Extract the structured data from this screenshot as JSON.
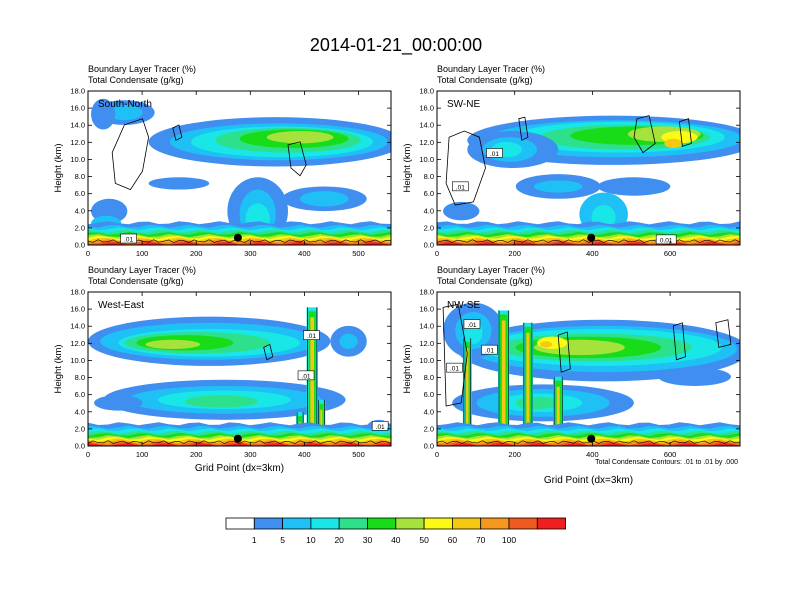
{
  "title": "2014-01-21_00:00:00",
  "colors": {
    "white": "#ffffff",
    "blue": "#3f8ef0",
    "sky": "#1ec0f5",
    "cyan": "#19e6e6",
    "teal": "#2de08c",
    "green": "#19dc19",
    "lime": "#a6e23c",
    "yellow": "#fafa14",
    "gold": "#f5c814",
    "orange": "#f5961e",
    "redorange": "#f05a1e",
    "red": "#f01e1e",
    "marker": "#000000"
  },
  "chart_data": [
    {
      "type": "heatmap",
      "panel": "South-North",
      "title_line1": "Boundary Layer Tracer   (%)",
      "title_line2": "Total Condensate   (g/kg)",
      "ylabel": "Height (km)",
      "xlabel": "",
      "xlim": [
        0,
        560
      ],
      "ylim": [
        0,
        18
      ],
      "xticks": [
        0,
        100,
        200,
        300,
        400,
        500
      ],
      "yticks": [
        "0.0",
        "2.0",
        "4.0",
        "6.0",
        "8.0",
        "10.0",
        "12.0",
        "14.0",
        "16.0",
        "18.0"
      ],
      "marker_x": 277,
      "contour_labels": [
        {
          "text": ".01",
          "x": 75,
          "y": 0.7
        }
      ]
    },
    {
      "type": "heatmap",
      "panel": "SW-NE",
      "title_line1": "Boundary Layer Tracer   (%)",
      "title_line2": "Total Condensate   (g/kg)",
      "ylabel": "Height (km)",
      "xlabel": "",
      "xlim": [
        0,
        780
      ],
      "ylim": [
        0,
        18
      ],
      "xticks": [
        0,
        200,
        400,
        600
      ],
      "yticks": [
        "0.0",
        "2.0",
        "4.0",
        "6.0",
        "8.0",
        "10.0",
        "12.0",
        "14.0",
        "16.0",
        "18.0"
      ],
      "marker_x": 397,
      "contour_labels": [
        {
          "text": ".01",
          "x": 148,
          "y": 10.7
        },
        {
          "text": ".01",
          "x": 60,
          "y": 6.8
        },
        {
          "text": "0.01",
          "x": 590,
          "y": 0.6
        }
      ]
    },
    {
      "type": "heatmap",
      "panel": "West-East",
      "title_line1": "Boundary Layer Tracer   (%)",
      "title_line2": "Total Condensate   (g/kg)",
      "ylabel": "Height (km)",
      "xlabel": "Grid Point (dx=3km)",
      "xlim": [
        0,
        560
      ],
      "ylim": [
        0,
        18
      ],
      "xticks": [
        0,
        100,
        200,
        300,
        400,
        500
      ],
      "yticks": [
        "0.0",
        "2.0",
        "4.0",
        "6.0",
        "8.0",
        "10.0",
        "12.0",
        "14.0",
        "16.0",
        "18.0"
      ],
      "marker_x": 277,
      "contour_labels": [
        {
          "text": ".01",
          "x": 413,
          "y": 12.9
        },
        {
          "text": ".01",
          "x": 403,
          "y": 8.2
        },
        {
          "text": ".01",
          "x": 540,
          "y": 2.3
        }
      ]
    },
    {
      "type": "heatmap",
      "panel": "NW-SE",
      "title_line1": "Boundary Layer Tracer   (%)",
      "title_line2": "Total Condensate   (g/kg)",
      "ylabel": "Height (km)",
      "xlabel": "Grid Point (dx=3km)",
      "xlim": [
        0,
        780
      ],
      "ylim": [
        0,
        18
      ],
      "xticks": [
        0,
        200,
        400,
        600
      ],
      "yticks": [
        "0.0",
        "2.0",
        "4.0",
        "6.0",
        "8.0",
        "10.0",
        "12.0",
        "14.0",
        "16.0",
        "18.0"
      ],
      "marker_x": 397,
      "contour_labels": [
        {
          "text": ".01",
          "x": 90,
          "y": 14.2
        },
        {
          "text": ".01",
          "x": 135,
          "y": 11.2
        },
        {
          "text": ".01",
          "x": 45,
          "y": 9.1
        }
      ]
    }
  ],
  "footer_note": "Total Condensate Contours: .01 to .01 by .000",
  "legend": {
    "labels": [
      "1",
      "5",
      "10",
      "20",
      "30",
      "40",
      "50",
      "60",
      "70",
      "100"
    ]
  }
}
